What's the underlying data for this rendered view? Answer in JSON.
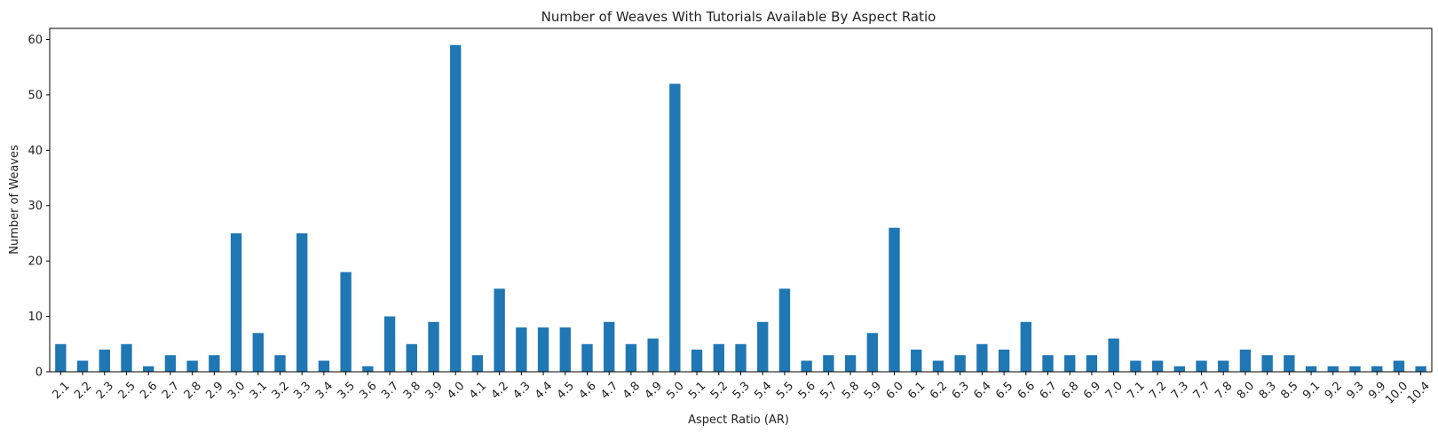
{
  "chart_data": {
    "type": "bar",
    "title": "Number of Weaves With Tutorials Available By Aspect Ratio",
    "xlabel": "Aspect Ratio (AR)",
    "ylabel": "Number of Weaves",
    "ylim": [
      0,
      62
    ],
    "yticks": [
      "0",
      "10",
      "20",
      "30",
      "40",
      "50",
      "60"
    ],
    "color": "#1f77b4",
    "grid": false,
    "legend": "none",
    "categories": [
      "2.1",
      "2.2",
      "2.3",
      "2.5",
      "2.6",
      "2.7",
      "2.8",
      "2.9",
      "3.0",
      "3.1",
      "3.2",
      "3.3",
      "3.4",
      "3.5",
      "3.6",
      "3.7",
      "3.8",
      "3.9",
      "4.0",
      "4.1",
      "4.2",
      "4.3",
      "4.4",
      "4.5",
      "4.6",
      "4.7",
      "4.8",
      "4.9",
      "5.0",
      "5.1",
      "5.2",
      "5.3",
      "5.4",
      "5.5",
      "5.6",
      "5.7",
      "5.8",
      "5.9",
      "6.0",
      "6.1",
      "6.2",
      "6.3",
      "6.4",
      "6.5",
      "6.6",
      "6.7",
      "6.8",
      "6.9",
      "7.0",
      "7.1",
      "7.2",
      "7.3",
      "7.7",
      "7.8",
      "8.0",
      "8.3",
      "8.5",
      "9.1",
      "9.2",
      "9.3",
      "9.9",
      "10.0",
      "10.4"
    ],
    "values": [
      5,
      2,
      4,
      5,
      1,
      3,
      2,
      3,
      25,
      7,
      3,
      25,
      2,
      18,
      1,
      10,
      5,
      9,
      59,
      3,
      15,
      8,
      8,
      8,
      5,
      9,
      5,
      6,
      52,
      4,
      5,
      5,
      9,
      15,
      2,
      3,
      3,
      7,
      26,
      4,
      2,
      3,
      5,
      4,
      9,
      3,
      3,
      3,
      6,
      2,
      2,
      1,
      2,
      2,
      4,
      3,
      3,
      1,
      1,
      1,
      1,
      2,
      1
    ]
  }
}
